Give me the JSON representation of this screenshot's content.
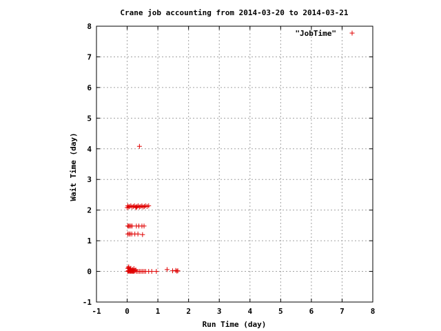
{
  "chart_data": {
    "type": "scatter",
    "title": "Crane job accounting from 2014-03-20 to 2014-03-21",
    "xlabel": "Run Time (day)",
    "ylabel": "Wait Time (day)",
    "xlim": [
      -1,
      8
    ],
    "ylim": [
      -1,
      8
    ],
    "xticks": [
      "-1",
      "0",
      "1",
      "2",
      "3",
      "4",
      "5",
      "6",
      "7",
      "8"
    ],
    "yticks": [
      "-1",
      "0",
      "1",
      "2",
      "3",
      "4",
      "5",
      "6",
      "7",
      "8"
    ],
    "grid": true,
    "legend_position": "top-right",
    "marker": "plus",
    "colors": {
      "series": "#e00000",
      "grid": "#a0a0a0",
      "frame": "#000000"
    },
    "series": [
      {
        "name": "\"JobTime\"",
        "points": [
          [
            0.02,
            0.0
          ],
          [
            0.04,
            0.02
          ],
          [
            0.06,
            0.0
          ],
          [
            0.08,
            0.03
          ],
          [
            0.1,
            0.0
          ],
          [
            0.12,
            0.01
          ],
          [
            0.14,
            0.0
          ],
          [
            0.16,
            0.02
          ],
          [
            0.18,
            0.0
          ],
          [
            0.2,
            0.01
          ],
          [
            0.22,
            0.0
          ],
          [
            0.25,
            0.02
          ],
          [
            0.3,
            0.0
          ],
          [
            0.35,
            0.0
          ],
          [
            0.4,
            0.0
          ],
          [
            0.45,
            0.0
          ],
          [
            0.5,
            0.0
          ],
          [
            0.55,
            0.0
          ],
          [
            0.6,
            0.0
          ],
          [
            0.7,
            0.0
          ],
          [
            0.8,
            0.0
          ],
          [
            0.95,
            0.0
          ],
          [
            0.02,
            0.1
          ],
          [
            0.05,
            0.12
          ],
          [
            0.08,
            0.08
          ],
          [
            0.12,
            0.1
          ],
          [
            0.18,
            0.06
          ],
          [
            0.22,
            0.09
          ],
          [
            0.28,
            0.05
          ],
          [
            0.05,
            0.15
          ],
          [
            0.1,
            0.05
          ],
          [
            1.3,
            0.06
          ],
          [
            1.48,
            0.02
          ],
          [
            1.58,
            0.03
          ],
          [
            1.62,
            0.01
          ],
          [
            1.65,
            0.02
          ],
          [
            0.02,
            1.22
          ],
          [
            0.06,
            1.22
          ],
          [
            0.1,
            1.22
          ],
          [
            0.15,
            1.22
          ],
          [
            0.25,
            1.22
          ],
          [
            0.35,
            1.22
          ],
          [
            0.5,
            1.2
          ],
          [
            0.02,
            1.48
          ],
          [
            0.05,
            1.48
          ],
          [
            0.08,
            1.48
          ],
          [
            0.12,
            1.48
          ],
          [
            0.16,
            1.48
          ],
          [
            0.3,
            1.48
          ],
          [
            0.38,
            1.48
          ],
          [
            0.48,
            1.48
          ],
          [
            0.55,
            1.48
          ],
          [
            0.0,
            2.08
          ],
          [
            0.05,
            2.1
          ],
          [
            0.08,
            2.12
          ],
          [
            0.12,
            2.14
          ],
          [
            0.16,
            2.1
          ],
          [
            0.2,
            2.12
          ],
          [
            0.24,
            2.14
          ],
          [
            0.28,
            2.1
          ],
          [
            0.32,
            2.12
          ],
          [
            0.36,
            2.14
          ],
          [
            0.4,
            2.1
          ],
          [
            0.44,
            2.12
          ],
          [
            0.48,
            2.14
          ],
          [
            0.52,
            2.1
          ],
          [
            0.56,
            2.12
          ],
          [
            0.6,
            2.14
          ],
          [
            0.65,
            2.12
          ],
          [
            0.7,
            2.14
          ],
          [
            0.02,
            2.14
          ],
          [
            0.3,
            2.08
          ],
          [
            0.4,
            4.08
          ]
        ]
      }
    ]
  }
}
